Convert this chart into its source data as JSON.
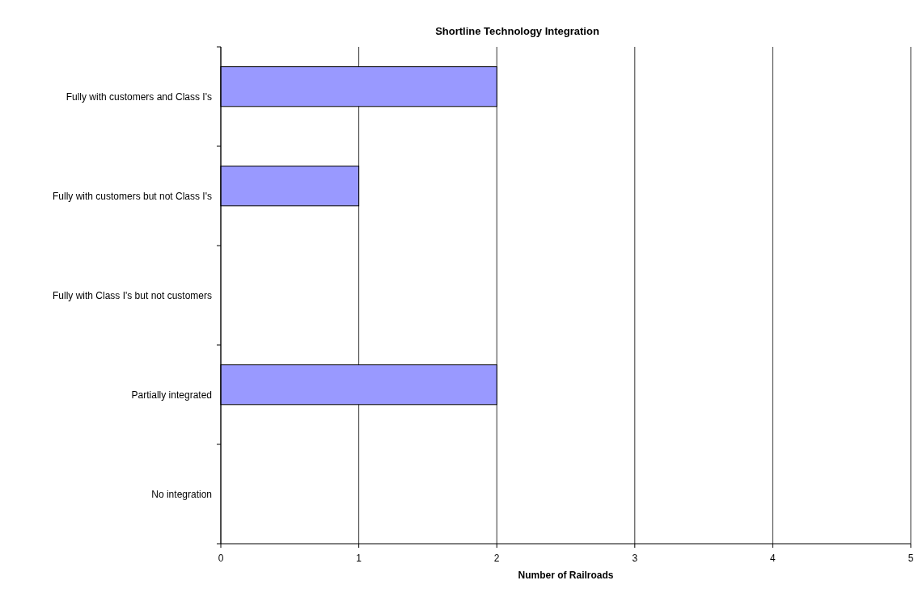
{
  "chart_data": {
    "type": "bar",
    "title": "Shortline Technology Integration",
    "xlabel": "Number of Railroads",
    "orientation": "horizontal",
    "categories": [
      "Fully with customers and Class I's",
      "Fully with customers but not Class I's",
      "Fully with Class I's but not customers",
      "Partially integrated",
      "No integration"
    ],
    "values": [
      2,
      1,
      0,
      2,
      0
    ],
    "color": "#9999ff",
    "xlim": [
      0,
      5
    ],
    "xticks": [
      0,
      1,
      2,
      3,
      4,
      5
    ],
    "grid": "x"
  }
}
